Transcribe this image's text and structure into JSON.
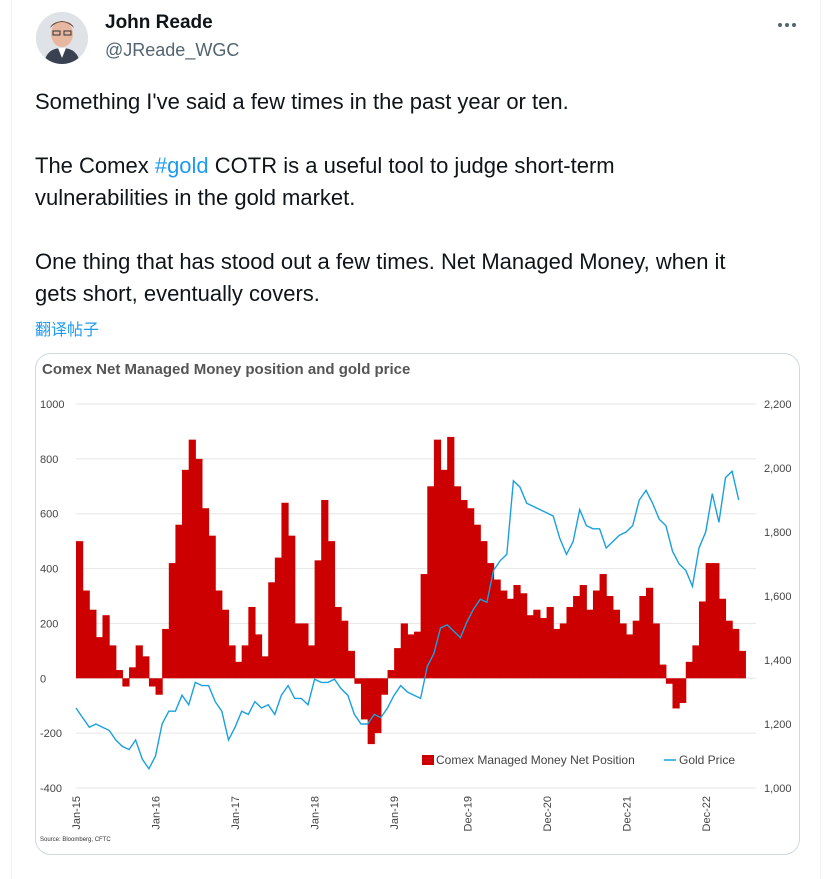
{
  "author": {
    "name": "John Reade",
    "handle": "@JReade_WGC"
  },
  "tweet": {
    "line1": "Something I've said a few times in the past year or ten.",
    "line2_pre": "The Comex ",
    "hashtag": "#gold",
    "line2_post": " COTR is a useful tool to judge short-term",
    "line3": "vulnerabilities in the gold market.",
    "line4": "One thing that has stood out a few times. Net Managed Money, when it",
    "line5": "gets short, eventually covers.",
    "translate_label": "翻译帖子"
  },
  "icons": {
    "more": "more-horizontal-icon",
    "avatar": "avatar-photo"
  },
  "colors": {
    "net_position": "#cc0000",
    "gold_price": "#1aa0df",
    "link": "#1d9bf0"
  },
  "chart_data": {
    "type": "bar+line",
    "title": "Comex Net Managed Money position and gold price",
    "source": "Source: Bloomberg, CFTC",
    "x_tick_labels": [
      "Jan-15",
      "Jan-16",
      "Jan-17",
      "Jan-18",
      "Jan-19",
      "Dec-19",
      "Dec-20",
      "Dec-21",
      "Dec-22"
    ],
    "y_left": {
      "ticks": [
        "1000",
        "800",
        "600",
        "400",
        "200",
        "0",
        "-200",
        "-400"
      ],
      "range": [
        -400,
        1000
      ]
    },
    "y_right": {
      "ticks": [
        "2,200",
        "2,000",
        "1,800",
        "1,600",
        "1,400",
        "1,200",
        "1,000"
      ],
      "range": [
        1000,
        2200
      ]
    },
    "legend_position": "bottom-right",
    "grid": true,
    "series": [
      {
        "name": "Comex Managed Money Net Position",
        "kind": "bar",
        "x": [
          2015.0,
          2015.083,
          2015.167,
          2015.25,
          2015.333,
          2015.417,
          2015.5,
          2015.583,
          2015.667,
          2015.75,
          2015.833,
          2015.917,
          2016.0,
          2016.083,
          2016.167,
          2016.25,
          2016.333,
          2016.417,
          2016.5,
          2016.583,
          2016.667,
          2016.75,
          2016.833,
          2016.917,
          2017.0,
          2017.083,
          2017.167,
          2017.25,
          2017.333,
          2017.417,
          2017.5,
          2017.583,
          2017.667,
          2017.75,
          2017.833,
          2017.917,
          2018.0,
          2018.083,
          2018.167,
          2018.25,
          2018.333,
          2018.417,
          2018.5,
          2018.583,
          2018.667,
          2018.75,
          2018.833,
          2018.917,
          2019.0,
          2019.083,
          2019.167,
          2019.25,
          2019.333,
          2019.417,
          2019.5,
          2019.583,
          2019.667,
          2019.75,
          2019.833,
          2019.917,
          2020.0,
          2020.083,
          2020.167,
          2020.25,
          2020.333,
          2020.417,
          2020.5,
          2020.583,
          2020.667,
          2020.75,
          2020.833,
          2020.917,
          2021.0,
          2021.083,
          2021.167,
          2021.25,
          2021.333,
          2021.417,
          2021.5,
          2021.583,
          2021.667,
          2021.75,
          2021.833,
          2021.917,
          2022.0,
          2022.083,
          2022.167,
          2022.25,
          2022.333,
          2022.417,
          2022.5,
          2022.583,
          2022.667,
          2022.75,
          2022.833,
          2022.917,
          2023.0,
          2023.083,
          2023.167,
          2023.25,
          2023.333
        ],
        "values": [
          500,
          320,
          250,
          150,
          230,
          120,
          30,
          -30,
          40,
          120,
          80,
          -30,
          -60,
          180,
          420,
          560,
          760,
          870,
          800,
          620,
          520,
          320,
          250,
          120,
          60,
          120,
          260,
          160,
          80,
          350,
          440,
          640,
          520,
          200,
          200,
          120,
          430,
          650,
          500,
          260,
          210,
          100,
          -20,
          -150,
          -240,
          -200,
          -60,
          30,
          110,
          200,
          160,
          170,
          380,
          700,
          870,
          760,
          880,
          700,
          650,
          620,
          560,
          500,
          420,
          360,
          320,
          290,
          340,
          310,
          230,
          250,
          220,
          260,
          180,
          200,
          260,
          300,
          340,
          250,
          320,
          380,
          300,
          250,
          200,
          160,
          210,
          300,
          330,
          200,
          50,
          -20,
          -110,
          -90,
          60,
          120,
          280,
          420,
          420,
          290,
          210,
          180,
          100
        ]
      },
      {
        "name": "Gold Price",
        "kind": "line",
        "x": [
          2015.0,
          2015.083,
          2015.167,
          2015.25,
          2015.333,
          2015.417,
          2015.5,
          2015.583,
          2015.667,
          2015.75,
          2015.833,
          2015.917,
          2016.0,
          2016.083,
          2016.167,
          2016.25,
          2016.333,
          2016.417,
          2016.5,
          2016.583,
          2016.667,
          2016.75,
          2016.833,
          2016.917,
          2017.0,
          2017.083,
          2017.167,
          2017.25,
          2017.333,
          2017.417,
          2017.5,
          2017.583,
          2017.667,
          2017.75,
          2017.833,
          2017.917,
          2018.0,
          2018.083,
          2018.167,
          2018.25,
          2018.333,
          2018.417,
          2018.5,
          2018.583,
          2018.667,
          2018.75,
          2018.833,
          2018.917,
          2019.0,
          2019.083,
          2019.167,
          2019.25,
          2019.333,
          2019.417,
          2019.5,
          2019.583,
          2019.667,
          2019.75,
          2019.833,
          2019.917,
          2020.0,
          2020.083,
          2020.167,
          2020.25,
          2020.333,
          2020.417,
          2020.5,
          2020.583,
          2020.667,
          2020.75,
          2020.833,
          2020.917,
          2021.0,
          2021.083,
          2021.167,
          2021.25,
          2021.333,
          2021.417,
          2021.5,
          2021.583,
          2021.667,
          2021.75,
          2021.833,
          2021.917,
          2022.0,
          2022.083,
          2022.167,
          2022.25,
          2022.333,
          2022.417,
          2022.5,
          2022.583,
          2022.667,
          2022.75,
          2022.833,
          2022.917,
          2023.0,
          2023.083,
          2023.167,
          2023.25,
          2023.333
        ],
        "values": [
          1250,
          1220,
          1190,
          1200,
          1190,
          1180,
          1150,
          1130,
          1120,
          1150,
          1090,
          1060,
          1100,
          1200,
          1240,
          1240,
          1290,
          1260,
          1330,
          1320,
          1320,
          1270,
          1240,
          1150,
          1190,
          1240,
          1230,
          1270,
          1250,
          1260,
          1230,
          1290,
          1320,
          1280,
          1280,
          1260,
          1340,
          1330,
          1330,
          1340,
          1310,
          1290,
          1230,
          1200,
          1200,
          1230,
          1220,
          1250,
          1290,
          1320,
          1300,
          1290,
          1280,
          1380,
          1420,
          1500,
          1510,
          1490,
          1470,
          1520,
          1560,
          1590,
          1580,
          1680,
          1710,
          1730,
          1960,
          1940,
          1890,
          1880,
          1870,
          1860,
          1850,
          1780,
          1730,
          1770,
          1870,
          1820,
          1810,
          1810,
          1750,
          1770,
          1790,
          1800,
          1820,
          1900,
          1930,
          1890,
          1840,
          1820,
          1740,
          1700,
          1680,
          1630,
          1750,
          1800,
          1920,
          1830,
          1970,
          1990,
          1900
        ]
      }
    ]
  }
}
